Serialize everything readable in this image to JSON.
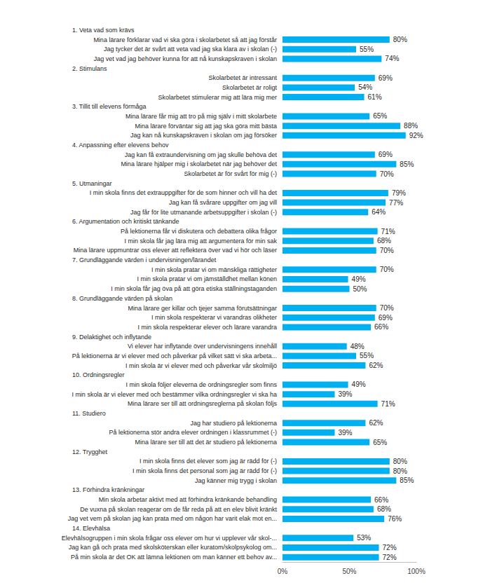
{
  "chart_data": {
    "type": "bar",
    "orientation": "horizontal",
    "color": "#00b0f0",
    "data_labels": true,
    "grid": false,
    "xlim": [
      0,
      100
    ],
    "xticks": [
      {
        "value": 0,
        "label": "0%"
      },
      {
        "value": 50,
        "label": "50%"
      },
      {
        "value": 100,
        "label": "100%"
      }
    ],
    "categories": [
      "1. Veta vad som krävs",
      "Mina lärare förklarar vad vi ska göra i skolarbetet så att jag förstår",
      "Jag tycker det är svårt att veta vad jag ska klara av i skolan (-)",
      "Jag vet vad jag behöver kunna för att nå kunskapskraven i skolan",
      "2. Stimulans",
      "Skolarbetet är intressant",
      "Skolarbetet är roligt",
      "Skolarbetet stimulerar mig att lära mig mer",
      "3. Tillit till elevens förmåga",
      "Mina lärare får mig att tro på mig själv i mitt skolarbete",
      "Mina lärare förväntar sig att jag ska göra mitt bästa",
      "Jag kan nå kunskapskraven i skolan om jag försöker",
      "4. Anpassning efter elevens behov",
      "Jag kan få extraundervisning om jag skulle behöva det",
      "Mina lärare hjälper mig i skolarbetet när jag behöver det",
      "Skolarbetet är för svårt för mig (-)",
      "5. Utmaningar",
      "I min skola finns det extrauppgifter för de som hinner och vill ha det",
      "Jag kan få svårare uppgifter om jag vill",
      "Jag får för lite utmanande arbetsuppgifter i skolan (-)",
      "6. Argumentation och kritiskt tänkande",
      "På lektionerna får vi diskutera och debattera olika frågor",
      "I min skola får jag lära mig att argumentera för min sak",
      "Mina lärare uppmuntrar oss elever att reflektera över vad vi hör och läser",
      "7. Grundläggande värden i undervisningen/lärandet",
      "I min skola pratar vi om mänskliga rättigheter",
      "I min skola pratar vi om jämställdhet mellan könen",
      "I min skola får jag öva på att göra etiska ställningstaganden",
      "8. Grundläggande värden på skolan",
      "Mina lärare ger killar och tjejer samma förutsättningar",
      "I min skola respekterar vi varandras olikheter",
      "I min skola respekterar elever och lärare varandra",
      "9. Delaktighet och inflytande",
      "Vi elever har inflytande över undervisningens innehåll",
      "På lektionerna är vi elever med och påverkar på vilket sätt vi ska arbeta...",
      "I min skola är vi elever med och påverkar vår skolmiljö",
      "10. Ordningsregler",
      "I min skola följer eleverna de ordningsregler som finns",
      "I min skola är vi elever med och bestämmer vilka ordningsregler vi ska ha",
      "Mina lärare ser till att ordningsreglerna på skolan följs",
      "11. Studiero",
      "Jag har studiero på lektionerna",
      "På lektionerna stör andra elever ordningen i klassrummet (-)",
      "Mina lärare ser till att det är studiero på lektionerna",
      "12. Trygghet",
      "I min skola finns det elever som jag är rädd för (-)",
      "I min skola finns det personal som jag är rädd för (-)",
      "Jag känner mig trygg i skolan",
      "13. Förhindra kränkningar",
      "Min skola arbetar aktivt med att förhindra kränkande behandling",
      "De vuxna på skolan reagerar om de får reda på att en elev blivit kränkt",
      "Jag vet vem på skolan jag kan prata med om någon har varit elak mot en...",
      "14. Elevhälsa",
      "Elevhälsogruppen i min skola frågar oss elever om hur vi upplever vår skol-...",
      "Jag kan gå och prata med skolsköterskan eller kuratom/skolpsykolog om...",
      "På min skola är det OK att lämna lektionen om man känner ett behov av..."
    ],
    "values": [
      null,
      80,
      55,
      74,
      null,
      69,
      54,
      61,
      null,
      65,
      88,
      92,
      null,
      69,
      85,
      70,
      null,
      79,
      77,
      64,
      null,
      71,
      68,
      70,
      null,
      70,
      49,
      50,
      null,
      70,
      69,
      66,
      null,
      48,
      55,
      62,
      null,
      49,
      39,
      71,
      null,
      62,
      39,
      65,
      null,
      80,
      80,
      85,
      null,
      66,
      68,
      76,
      null,
      53,
      72,
      72
    ],
    "value_labels": [
      null,
      "80%",
      "55%",
      "74%",
      null,
      "69%",
      "54%",
      "61%",
      null,
      "65%",
      "88%",
      "92%",
      null,
      "69%",
      "85%",
      "70%",
      null,
      "79%",
      "77%",
      "64%",
      null,
      "71%",
      "68%",
      "70%",
      null,
      "70%",
      "49%",
      "50%",
      null,
      "70%",
      "69%",
      "66%",
      null,
      "48%",
      "55%",
      "62%",
      null,
      "49%",
      "39%",
      "71%",
      null,
      "62%",
      "39%",
      "65%",
      null,
      "80%",
      "80%",
      "85%",
      null,
      "66%",
      "68%",
      "76%",
      null,
      "53%",
      "72%",
      "72%"
    ]
  }
}
